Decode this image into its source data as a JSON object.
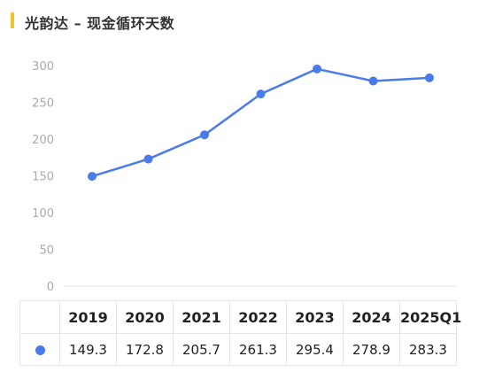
{
  "title": "光韵达 – 现金循环天数",
  "colors": {
    "accent_bar": "#f2c12e",
    "series": "#4a7bea",
    "axis_text": "#aaaaaa",
    "grid": "#e6e6e6"
  },
  "chart_data": {
    "type": "line",
    "title": "光韵达 – 现金循环天数",
    "categories": [
      "2019",
      "2020",
      "2021",
      "2022",
      "2023",
      "2024",
      "2025Q1"
    ],
    "series": [
      {
        "values": [
          149.3,
          172.8,
          205.7,
          261.3,
          295.4,
          278.9,
          283.3
        ]
      }
    ],
    "ylim": [
      0,
      300
    ],
    "yticks": [
      0,
      50,
      100,
      150,
      200,
      250,
      300
    ],
    "grid": false,
    "legend": "none",
    "data_table": true
  }
}
